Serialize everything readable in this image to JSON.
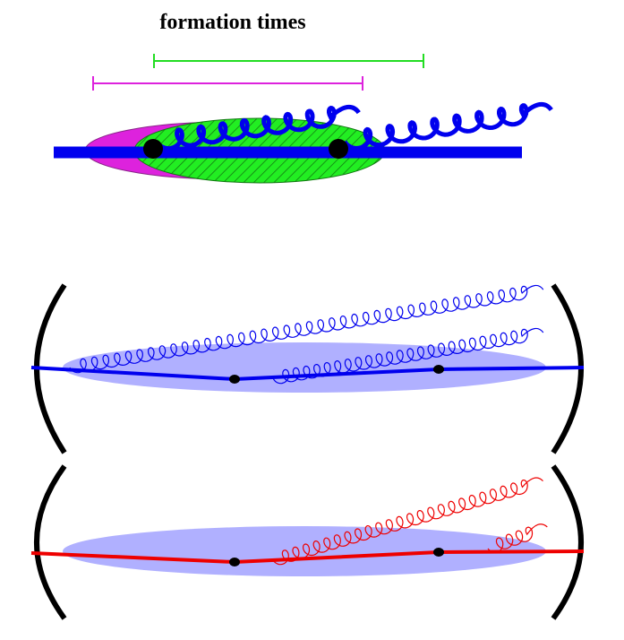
{
  "title": "formation times"
}
